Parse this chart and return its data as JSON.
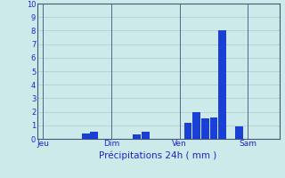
{
  "title": "",
  "xlabel": "Précipitations 24h ( mm )",
  "ylabel": "",
  "background_color": "#cceaea",
  "bar_color": "#1a3fd4",
  "grid_color": "#aacaca",
  "ylim": [
    0,
    10
  ],
  "yticks": [
    0,
    1,
    2,
    3,
    4,
    5,
    6,
    7,
    8,
    9,
    10
  ],
  "day_labels": [
    "Jeu",
    "Dim",
    "Ven",
    "Sam"
  ],
  "day_positions": [
    0,
    8,
    16,
    24
  ],
  "n_bars": 28,
  "bar_values": [
    0,
    0,
    0,
    0,
    0,
    0.4,
    0.5,
    0,
    0,
    0,
    0,
    0.3,
    0.5,
    0,
    0,
    0,
    0,
    1.2,
    2.0,
    1.5,
    1.6,
    8.0,
    0,
    0.9,
    0,
    0,
    0,
    0
  ]
}
